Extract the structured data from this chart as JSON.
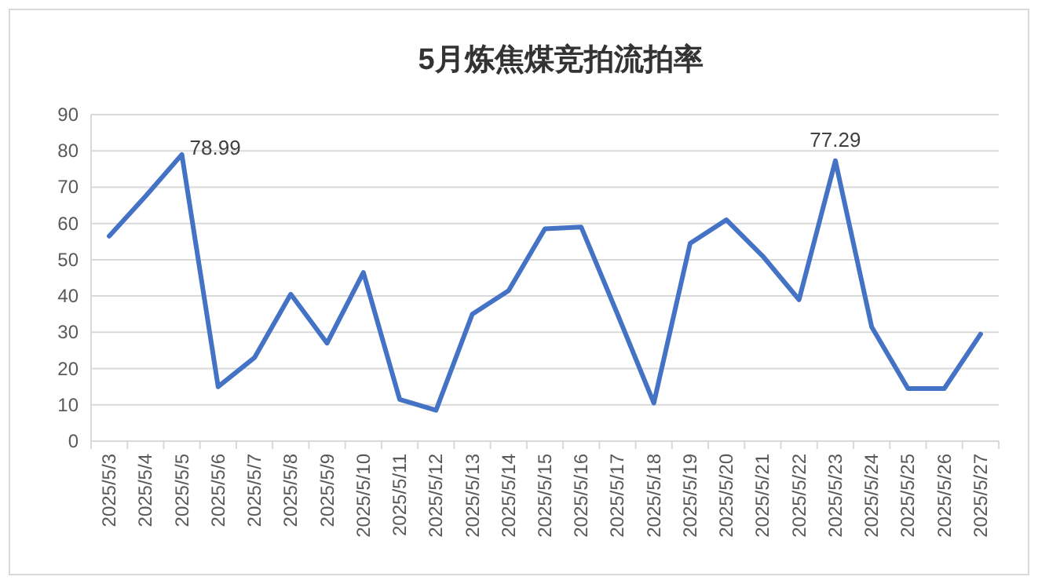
{
  "chart_data": {
    "type": "line",
    "title": "5月炼焦煤竞拍流拍率",
    "categories": [
      "2025/5/3",
      "2025/5/4",
      "2025/5/5",
      "2025/5/6",
      "2025/5/7",
      "2025/5/8",
      "2025/5/9",
      "2025/5/10",
      "2025/5/11",
      "2025/5/12",
      "2025/5/13",
      "2025/5/14",
      "2025/5/15",
      "2025/5/16",
      "2025/5/17",
      "2025/5/18",
      "2025/5/19",
      "2025/5/20",
      "2025/5/21",
      "2025/5/22",
      "2025/5/23",
      "2025/5/24",
      "2025/5/25",
      "2025/5/26",
      "2025/5/27"
    ],
    "series": [
      {
        "color": "#4472c4",
        "values": [
          56.5,
          67.5,
          78.99,
          15,
          23,
          40.5,
          27,
          46.5,
          11.5,
          8.5,
          35,
          41.5,
          58.5,
          59,
          35,
          10.5,
          54.5,
          61,
          51,
          39,
          77.29,
          31.5,
          14.5,
          14.5,
          29.5
        ],
        "value_labels": [
          null,
          null,
          "78.99",
          null,
          null,
          null,
          null,
          null,
          null,
          null,
          null,
          null,
          null,
          null,
          null,
          null,
          null,
          null,
          null,
          null,
          "77.29",
          null,
          null,
          null,
          null
        ]
      }
    ],
    "ylim": [
      0,
      90
    ],
    "yticks": [
      0,
      10,
      20,
      30,
      40,
      50,
      60,
      70,
      80,
      90
    ],
    "grid": "y",
    "marker": "none",
    "line_style": "solid"
  }
}
